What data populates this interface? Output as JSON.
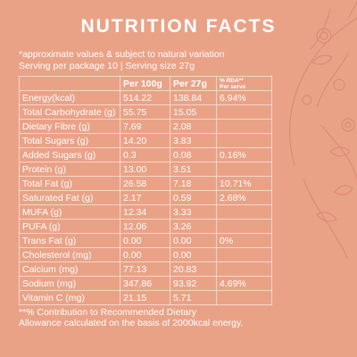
{
  "title": "NUTRITION FACTS",
  "note": "*approximate values & subject to natural variation",
  "serving": "Serving per package 10  |  Serving size 27g",
  "headers": {
    "per100": "Per 100g",
    "per27": "Per 27g",
    "rda_line1": "% RDA**",
    "rda_line2": "Per serve"
  },
  "rows": [
    {
      "name": "Energy(kcal)",
      "per100": "514.22",
      "per27": "138.84",
      "rda": "6.94%"
    },
    {
      "name": "Total Carbohydrate (g)",
      "per100": "55.75",
      "per27": "15.05",
      "rda": ""
    },
    {
      "name": "Dietary Fibre (g)",
      "per100": "7.69",
      "per27": "2.08",
      "rda": ""
    },
    {
      "name": "Total Sugars (g)",
      "per100": "14.20",
      "per27": "3.83",
      "rda": ""
    },
    {
      "name": "Added Sugars (g)",
      "per100": "0.3",
      "per27": "0.08",
      "rda": "0.16%"
    },
    {
      "name": "Protein (g)",
      "per100": "13.00",
      "per27": "3.51",
      "rda": ""
    },
    {
      "name": "Total Fat (g)",
      "per100": "26.58",
      "per27": "7.18",
      "rda": "10.71%"
    },
    {
      "name": "Saturated Fat (g)",
      "per100": "2.17",
      "per27": "0.59",
      "rda": "2.68%"
    },
    {
      "name": "MUFA (g)",
      "per100": "12.34",
      "per27": "3.33",
      "rda": ""
    },
    {
      "name": "PUFA (g)",
      "per100": "12.06",
      "per27": "3.26",
      "rda": ""
    },
    {
      "name": "Trans Fat (g)",
      "per100": "0.00",
      "per27": "0.00",
      "rda": "0%"
    },
    {
      "name": "Cholesterol (mg)",
      "per100": "0.00",
      "per27": "0.00",
      "rda": ""
    },
    {
      "name": "Calcium (mg)",
      "per100": "77.13",
      "per27": "20.83",
      "rda": ""
    },
    {
      "name": "Sodium (mg)",
      "per100": "347.86",
      "per27": "93.92",
      "rda": "4.69%"
    },
    {
      "name": "Vitamin C (mg)",
      "per100": "21.15",
      "per27": "5.71",
      "rda": ""
    }
  ],
  "footnote_line1": "**% Contribution to Recommended Dietary",
  "footnote_line2": "Allowance calculated on the basis of 2000kcal energy.",
  "colors": {
    "background": "#eaa287",
    "text": "#ffffff",
    "decoration": "#d98a72"
  }
}
